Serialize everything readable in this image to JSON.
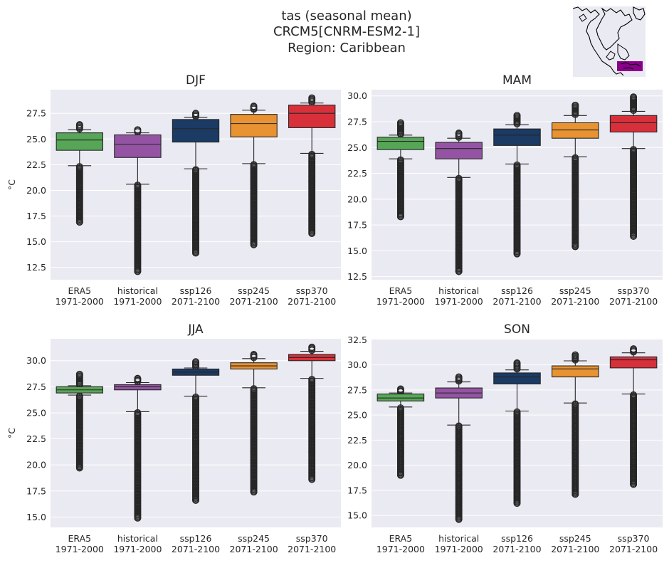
{
  "figure": {
    "title_lines": [
      "tas (seasonal mean)",
      "CRCM5[CNRM-ESM2-1]",
      "Region: Caribbean"
    ]
  },
  "inset_map": {
    "icon": "north-america-map-icon",
    "highlight_color": "#8b008b"
  },
  "colors": {
    "ERA5": "#57a657",
    "historical": "#9454a3",
    "ssp126": "#1b3a64",
    "ssp245": "#e89232",
    "ssp370": "#d8303a"
  },
  "chart_data": [
    {
      "type": "box",
      "title": "DJF",
      "ylabel": "°C",
      "ylim": [
        11.3,
        29.8
      ],
      "yticks": [
        "12.5",
        "15.0",
        "17.5",
        "20.0",
        "22.5",
        "25.0",
        "27.5"
      ],
      "categories": [
        "ERA5\n1971-2000",
        "historical\n1971-2000",
        "ssp126\n2071-2100",
        "ssp245\n2071-2100",
        "ssp370\n2071-2100"
      ],
      "series": [
        {
          "key": "ERA5",
          "whislo": 22.4,
          "q1": 23.9,
          "median": 24.9,
          "q3": 25.6,
          "whishi": 25.9,
          "flier_min": 16.9,
          "flier_max": 26.4
        },
        {
          "key": "historical",
          "whislo": 20.6,
          "q1": 23.2,
          "median": 24.5,
          "q3": 25.4,
          "whishi": 25.6,
          "flier_min": 12.1,
          "flier_max": 25.9
        },
        {
          "key": "ssp126",
          "whislo": 22.1,
          "q1": 24.7,
          "median": 26.0,
          "q3": 26.9,
          "whishi": 27.1,
          "flier_min": 13.9,
          "flier_max": 27.5
        },
        {
          "key": "ssp245",
          "whislo": 22.6,
          "q1": 25.2,
          "median": 26.5,
          "q3": 27.4,
          "whishi": 27.8,
          "flier_min": 14.7,
          "flier_max": 28.2
        },
        {
          "key": "ssp370",
          "whislo": 23.6,
          "q1": 26.1,
          "median": 27.5,
          "q3": 28.3,
          "whishi": 28.5,
          "flier_min": 15.8,
          "flier_max": 29.0
        }
      ]
    },
    {
      "type": "box",
      "title": "MAM",
      "ylabel": "",
      "ylim": [
        12.2,
        30.6
      ],
      "yticks": [
        "12.5",
        "15.0",
        "17.5",
        "20.0",
        "22.5",
        "25.0",
        "27.5",
        "30.0"
      ],
      "categories": [
        "ERA5\n1971-2000",
        "historical\n1971-2000",
        "ssp126\n2071-2100",
        "ssp245\n2071-2100",
        "ssp370\n2071-2100"
      ],
      "series": [
        {
          "key": "ERA5",
          "whislo": 23.9,
          "q1": 24.8,
          "median": 25.6,
          "q3": 26.0,
          "whishi": 26.2,
          "flier_min": 18.3,
          "flier_max": 27.4
        },
        {
          "key": "historical",
          "whislo": 22.1,
          "q1": 23.9,
          "median": 24.9,
          "q3": 25.5,
          "whishi": 25.9,
          "flier_min": 13.0,
          "flier_max": 26.4
        },
        {
          "key": "ssp126",
          "whislo": 23.4,
          "q1": 25.2,
          "median": 26.2,
          "q3": 26.8,
          "whishi": 27.2,
          "flier_min": 14.7,
          "flier_max": 28.1
        },
        {
          "key": "ssp245",
          "whislo": 24.1,
          "q1": 25.9,
          "median": 26.7,
          "q3": 27.4,
          "whishi": 28.1,
          "flier_min": 15.4,
          "flier_max": 29.1
        },
        {
          "key": "ssp370",
          "whislo": 24.9,
          "q1": 26.5,
          "median": 27.4,
          "q3": 28.1,
          "whishi": 28.5,
          "flier_min": 16.4,
          "flier_max": 29.9
        }
      ]
    },
    {
      "type": "box",
      "title": "JJA",
      "ylabel": "°C",
      "ylim": [
        14.0,
        32.1
      ],
      "yticks": [
        "15.0",
        "17.5",
        "20.0",
        "22.5",
        "25.0",
        "27.5",
        "30.0"
      ],
      "categories": [
        "ERA5\n1971-2000",
        "historical\n1971-2000",
        "ssp126\n2071-2100",
        "ssp245\n2071-2100",
        "ssp370\n2071-2100"
      ],
      "series": [
        {
          "key": "ERA5",
          "whislo": 26.7,
          "q1": 26.9,
          "median": 27.2,
          "q3": 27.5,
          "whishi": 27.6,
          "flier_min": 19.7,
          "flier_max": 28.7
        },
        {
          "key": "historical",
          "whislo": 25.1,
          "q1": 27.2,
          "median": 27.5,
          "q3": 27.7,
          "whishi": 27.9,
          "flier_min": 14.9,
          "flier_max": 28.3
        },
        {
          "key": "ssp126",
          "whislo": 26.6,
          "q1": 28.6,
          "median": 28.9,
          "q3": 29.2,
          "whishi": 29.3,
          "flier_min": 16.6,
          "flier_max": 29.9
        },
        {
          "key": "ssp245",
          "whislo": 27.4,
          "q1": 29.2,
          "median": 29.5,
          "q3": 29.8,
          "whishi": 30.2,
          "flier_min": 17.4,
          "flier_max": 30.6
        },
        {
          "key": "ssp370",
          "whislo": 28.3,
          "q1": 30.0,
          "median": 30.3,
          "q3": 30.6,
          "whishi": 30.9,
          "flier_min": 18.6,
          "flier_max": 31.3
        }
      ]
    },
    {
      "type": "box",
      "title": "SON",
      "ylabel": "",
      "ylim": [
        13.8,
        32.6
      ],
      "yticks": [
        "15.0",
        "17.5",
        "20.0",
        "22.5",
        "25.0",
        "27.5",
        "30.0",
        "32.5"
      ],
      "categories": [
        "ERA5\n1971-2000",
        "historical\n1971-2000",
        "ssp126\n2071-2100",
        "ssp245\n2071-2100",
        "ssp370\n2071-2100"
      ],
      "series": [
        {
          "key": "ERA5",
          "whislo": 25.8,
          "q1": 26.4,
          "median": 26.7,
          "q3": 27.1,
          "whishi": 27.2,
          "flier_min": 19.0,
          "flier_max": 27.6
        },
        {
          "key": "historical",
          "whislo": 24.0,
          "q1": 26.7,
          "median": 27.2,
          "q3": 27.7,
          "whishi": 28.3,
          "flier_min": 14.6,
          "flier_max": 28.8
        },
        {
          "key": "ssp126",
          "whislo": 25.4,
          "q1": 28.1,
          "median": 28.8,
          "q3": 29.2,
          "whishi": 29.5,
          "flier_min": 16.2,
          "flier_max": 30.2
        },
        {
          "key": "ssp245",
          "whislo": 26.2,
          "q1": 28.8,
          "median": 29.6,
          "q3": 29.9,
          "whishi": 30.4,
          "flier_min": 17.1,
          "flier_max": 31.0
        },
        {
          "key": "ssp370",
          "whislo": 27.1,
          "q1": 29.7,
          "median": 30.5,
          "q3": 30.8,
          "whishi": 31.2,
          "flier_min": 18.1,
          "flier_max": 31.6
        }
      ]
    }
  ]
}
